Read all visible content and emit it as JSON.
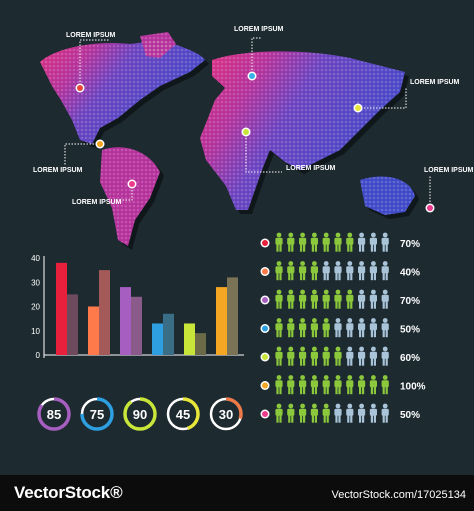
{
  "map": {
    "labels": [
      "LOREM IPSUM",
      "LOREM IPSUM",
      "LOREM IPSUM",
      "LOREM IPSUM",
      "LOREM IPSUM",
      "LOREM IPSUM",
      "LOREM IPSUM"
    ],
    "marker_colors": [
      "#e8463a",
      "#f5a623",
      "#ee3a8c",
      "#c8e63a",
      "#3ab0e8",
      "#e8e63a",
      "#ee3a8c"
    ]
  },
  "chart_data": {
    "type": "bar",
    "ylim": [
      0,
      40
    ],
    "yticks": [
      "0",
      "10",
      "20",
      "30",
      "40"
    ],
    "series": [
      {
        "values": [
          38,
          20,
          28,
          13,
          13,
          28
        ]
      },
      {
        "values": [
          25,
          35,
          24,
          17,
          9,
          32
        ]
      }
    ],
    "colors": [
      [
        "#e8203c",
        "#6e4a5e"
      ],
      [
        "#ff7a4a",
        "#a55a5a"
      ],
      [
        "#a65fc0",
        "#8a5a8a"
      ],
      [
        "#2e9fe0",
        "#3a6e86"
      ],
      [
        "#c8e63a",
        "#6b6b48"
      ],
      [
        "#f5a623",
        "#7b7355"
      ]
    ]
  },
  "rings": [
    {
      "value": "85",
      "color": "#a65fc0",
      "fraction": 0.85
    },
    {
      "value": "75",
      "color": "#2e9fe0",
      "fraction": 0.75
    },
    {
      "value": "90",
      "color": "#c8e63a",
      "fraction": 0.9
    },
    {
      "value": "45",
      "color": "#e8e63a",
      "fraction": 0.45
    },
    {
      "value": "30",
      "color": "#ee7a4a",
      "fraction": 0.3
    }
  ],
  "people_rows": [
    {
      "dot_color": "#e8203c",
      "percent": "70%",
      "green_count": 7
    },
    {
      "dot_color": "#ff7a4a",
      "percent": "40%",
      "green_count": 4
    },
    {
      "dot_color": "#a65fc0",
      "percent": "70%",
      "green_count": 7
    },
    {
      "dot_color": "#2e9fe0",
      "percent": "50%",
      "green_count": 5
    },
    {
      "dot_color": "#c8e63a",
      "percent": "60%",
      "green_count": 6
    },
    {
      "dot_color": "#f5a623",
      "percent": "100%",
      "green_count": 10
    },
    {
      "dot_color": "#ee3a8c",
      "percent": "50%",
      "green_count": 5
    }
  ],
  "footer": {
    "brand": "VectorStock®",
    "url": "VectorStock.com/17025134"
  }
}
